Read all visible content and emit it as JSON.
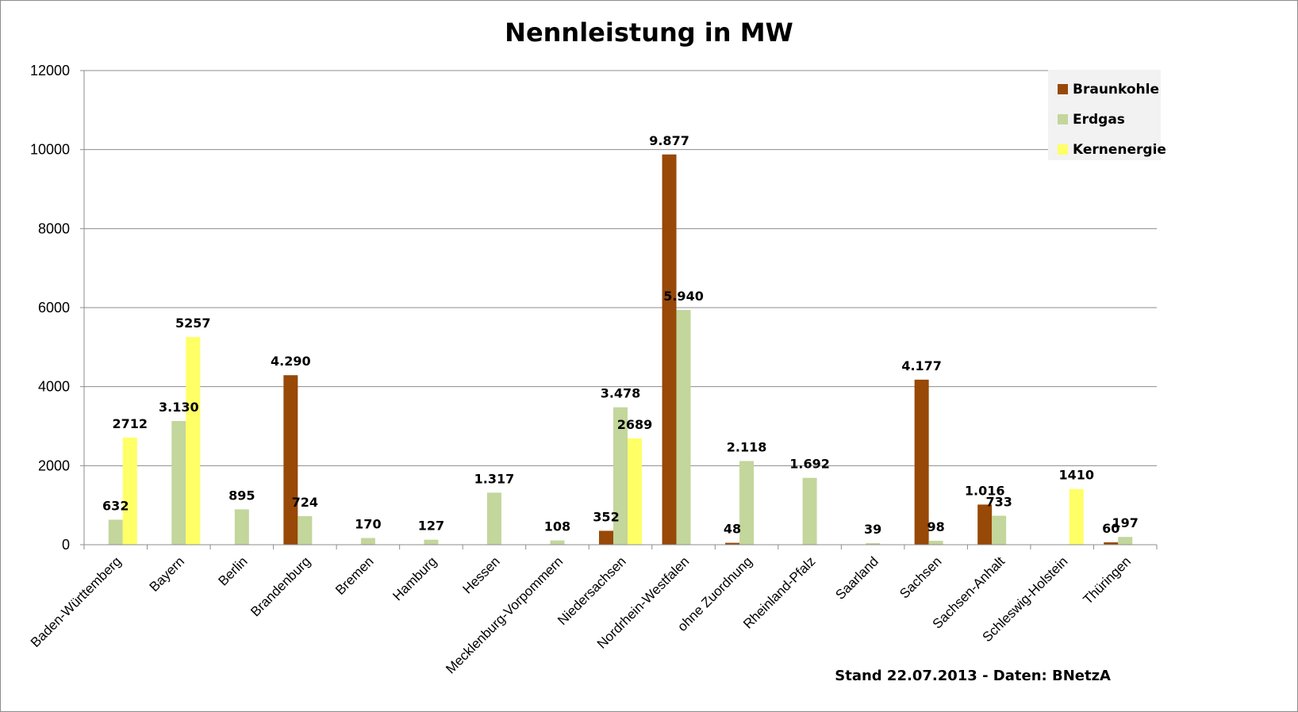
{
  "chart_data": {
    "type": "bar",
    "title": "Nennleistung in MW",
    "categories": [
      "Baden-Württemberg",
      "Bayern",
      "Berlin",
      "Brandenburg",
      "Bremen",
      "Hamburg",
      "Hessen",
      "Mecklenburg-Vorpommern",
      "Niedersachsen",
      "Nordrhein-Westfalen",
      "ohne Zuordnung",
      "Rheinland-Pfalz",
      "Saarland",
      "Sachsen",
      "Sachsen-Anhalt",
      "Schleswig-Holstein",
      "Thüringen"
    ],
    "series": [
      {
        "name": "Braunkohle",
        "color": "#984807",
        "values": [
          null,
          null,
          null,
          4290,
          null,
          null,
          null,
          null,
          352,
          9877,
          48,
          null,
          null,
          4177,
          1016,
          null,
          60
        ],
        "labels": [
          null,
          null,
          null,
          "4.290",
          null,
          null,
          null,
          null,
          "352",
          "9.877",
          "48",
          null,
          null,
          "4.177",
          "1.016",
          null,
          "60"
        ]
      },
      {
        "name": "Erdgas",
        "color": "#c3d69b",
        "values": [
          632,
          3130,
          895,
          724,
          170,
          127,
          1317,
          108,
          3478,
          5940,
          2118,
          1692,
          39,
          98,
          733,
          null,
          197
        ],
        "labels": [
          "632",
          "3.130",
          "895",
          "724",
          "170",
          "127",
          "1.317",
          "108",
          "3.478",
          "5.940",
          "2.118",
          "1.692",
          "39",
          "98",
          "733",
          null,
          "197"
        ]
      },
      {
        "name": "Kernenergie",
        "color": "#ffff66",
        "values": [
          2712,
          5257,
          null,
          null,
          null,
          null,
          null,
          null,
          2689,
          null,
          null,
          null,
          null,
          null,
          null,
          1410,
          null
        ],
        "labels": [
          "2712",
          "5257",
          null,
          null,
          null,
          null,
          null,
          null,
          "2689",
          null,
          null,
          null,
          null,
          null,
          null,
          "1410",
          null
        ]
      }
    ],
    "ylim": [
      0,
      12000
    ],
    "yticks": [
      "0",
      "2000",
      "4000",
      "6000",
      "8000",
      "10000",
      "12000"
    ],
    "grid": true,
    "legend": "top-right",
    "xlabel": "",
    "ylabel": ""
  },
  "footnote": "Stand 22.07.2013 - Daten: BNetzA"
}
